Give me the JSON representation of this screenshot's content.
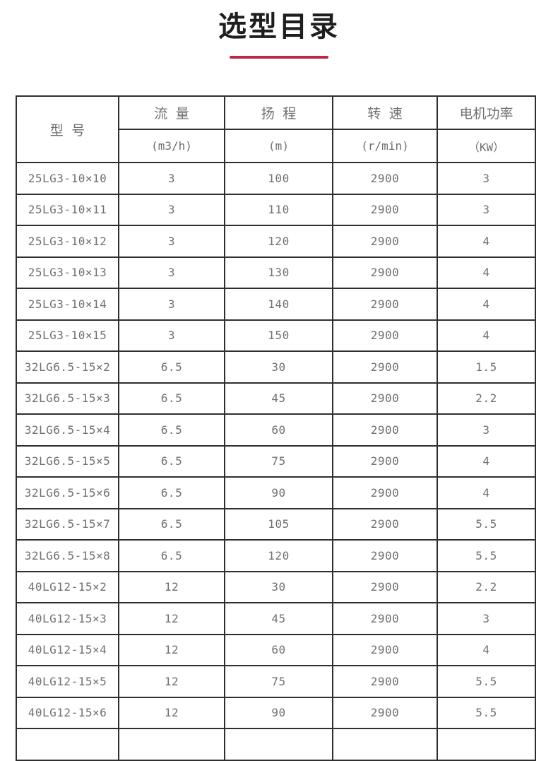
{
  "page": {
    "title": "选型目录"
  },
  "colors": {
    "accent_underline": "#bc2649",
    "table_border": "#2f2f2f",
    "table_text": "#707070",
    "title_text": "#1e1e1e"
  },
  "table": {
    "model_header": "型 号",
    "columns": [
      {
        "label": "流  量",
        "unit": "(m3/h)"
      },
      {
        "label": "扬  程",
        "unit": "(m)"
      },
      {
        "label": "转  速",
        "unit": "(r/min)"
      },
      {
        "label": "电机功率",
        "unit": "（KW）"
      }
    ],
    "rows": [
      {
        "model": "25LG3-10×10",
        "flow": "3",
        "head": "100",
        "speed": "2900",
        "power": "3"
      },
      {
        "model": "25LG3-10×11",
        "flow": "3",
        "head": "110",
        "speed": "2900",
        "power": "3"
      },
      {
        "model": "25LG3-10×12",
        "flow": "3",
        "head": "120",
        "speed": "2900",
        "power": "4"
      },
      {
        "model": "25LG3-10×13",
        "flow": "3",
        "head": "130",
        "speed": "2900",
        "power": "4"
      },
      {
        "model": "25LG3-10×14",
        "flow": "3",
        "head": "140",
        "speed": "2900",
        "power": "4"
      },
      {
        "model": "25LG3-10×15",
        "flow": "3",
        "head": "150",
        "speed": "2900",
        "power": "4"
      },
      {
        "model": "32LG6.5-15×2",
        "flow": "6.5",
        "head": "30",
        "speed": "2900",
        "power": "1.5"
      },
      {
        "model": "32LG6.5-15×3",
        "flow": "6.5",
        "head": "45",
        "speed": "2900",
        "power": "2.2"
      },
      {
        "model": "32LG6.5-15×4",
        "flow": "6.5",
        "head": "60",
        "speed": "2900",
        "power": "3"
      },
      {
        "model": "32LG6.5-15×5",
        "flow": "6.5",
        "head": "75",
        "speed": "2900",
        "power": "4"
      },
      {
        "model": "32LG6.5-15×6",
        "flow": "6.5",
        "head": "90",
        "speed": "2900",
        "power": "4"
      },
      {
        "model": "32LG6.5-15×7",
        "flow": "6.5",
        "head": "105",
        "speed": "2900",
        "power": "5.5"
      },
      {
        "model": "32LG6.5-15×8",
        "flow": "6.5",
        "head": "120",
        "speed": "2900",
        "power": "5.5"
      },
      {
        "model": "40LG12-15×2",
        "flow": "12",
        "head": "30",
        "speed": "2900",
        "power": "2.2"
      },
      {
        "model": "40LG12-15×3",
        "flow": "12",
        "head": "45",
        "speed": "2900",
        "power": "3"
      },
      {
        "model": "40LG12-15×4",
        "flow": "12",
        "head": "60",
        "speed": "2900",
        "power": "4"
      },
      {
        "model": "40LG12-15×5",
        "flow": "12",
        "head": "75",
        "speed": "2900",
        "power": "5.5"
      },
      {
        "model": "40LG12-15×6",
        "flow": "12",
        "head": "90",
        "speed": "2900",
        "power": "5.5"
      }
    ],
    "partial_bottom_row": true
  }
}
